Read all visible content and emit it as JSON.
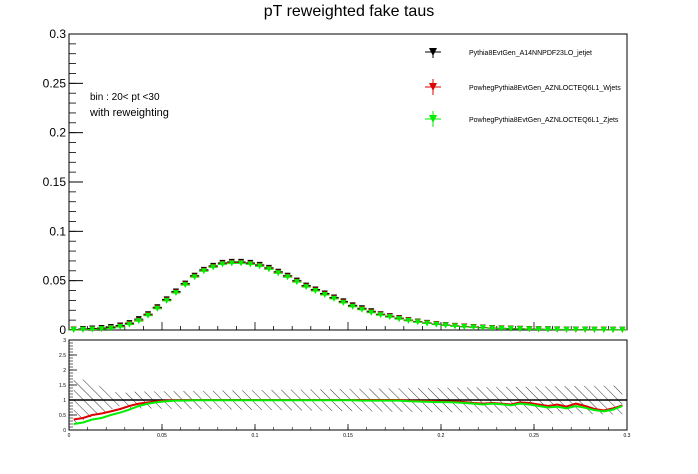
{
  "chart_data": {
    "type": "scatter",
    "title": "pT reweighted fake taus",
    "annotations": [
      "bin : 20< pt <30",
      "with reweighting"
    ],
    "main": {
      "xlim": [
        0,
        0.3
      ],
      "ylim": [
        0,
        0.3
      ],
      "yticks": [
        "0",
        "0.05",
        "0.1",
        "0.15",
        "0.2",
        "0.25",
        "0.3"
      ],
      "yticks_values": [
        0,
        0.05,
        0.1,
        0.15,
        0.2,
        0.25,
        0.3
      ],
      "x": [
        0.0025,
        0.0075,
        0.0125,
        0.0175,
        0.0225,
        0.0275,
        0.0325,
        0.0375,
        0.0425,
        0.0475,
        0.0525,
        0.0575,
        0.0625,
        0.0675,
        0.0725,
        0.0775,
        0.0825,
        0.0875,
        0.0925,
        0.0975,
        0.1025,
        0.1075,
        0.1125,
        0.1175,
        0.1225,
        0.1275,
        0.1325,
        0.1375,
        0.1425,
        0.1475,
        0.1525,
        0.1575,
        0.1625,
        0.1675,
        0.1725,
        0.1775,
        0.1825,
        0.1875,
        0.1925,
        0.1975,
        0.2025,
        0.2075,
        0.2125,
        0.2175,
        0.2225,
        0.2275,
        0.2325,
        0.2375,
        0.2425,
        0.2475,
        0.2525,
        0.2575,
        0.2625,
        0.2675,
        0.2725,
        0.2775,
        0.2825,
        0.2875,
        0.2925,
        0.2975
      ],
      "series": [
        {
          "name": "Pythia8EvtGen_A14NNPDF23LO_jetjet",
          "color": "#000000",
          "marker": "triangle-down",
          "values": [
            0.0005,
            0.001,
            0.0015,
            0.002,
            0.003,
            0.0045,
            0.007,
            0.011,
            0.016,
            0.023,
            0.031,
            0.039,
            0.047,
            0.055,
            0.061,
            0.065,
            0.068,
            0.069,
            0.069,
            0.068,
            0.066,
            0.063,
            0.059,
            0.055,
            0.05,
            0.045,
            0.041,
            0.037,
            0.033,
            0.029,
            0.025,
            0.022,
            0.019,
            0.016,
            0.014,
            0.012,
            0.01,
            0.0085,
            0.0072,
            0.006,
            0.005,
            0.0042,
            0.0035,
            0.003,
            0.0025,
            0.002,
            0.0017,
            0.0014,
            0.0012,
            0.001,
            0.0008,
            0.0007,
            0.0006,
            0.0005,
            0.0004,
            0.0004,
            0.0003,
            0.0003,
            0.0002,
            0.0002
          ]
        },
        {
          "name": "PowhegPythia8EvtGen_AZNLOCTEQ6L1_Wjets",
          "color": "#dd0000",
          "marker": "triangle-down",
          "values": [
            0.0002,
            0.0004,
            0.0008,
            0.0012,
            0.002,
            0.0035,
            0.006,
            0.0095,
            0.015,
            0.022,
            0.03,
            0.038,
            0.046,
            0.054,
            0.06,
            0.064,
            0.067,
            0.068,
            0.068,
            0.067,
            0.065,
            0.062,
            0.058,
            0.054,
            0.049,
            0.044,
            0.04,
            0.036,
            0.032,
            0.028,
            0.024,
            0.021,
            0.018,
            0.0155,
            0.0135,
            0.0115,
            0.0097,
            0.0082,
            0.007,
            0.0058,
            0.0048,
            0.004,
            0.0034,
            0.0029,
            0.0024,
            0.0019,
            0.0016,
            0.0013,
            0.0011,
            0.0009,
            0.0007,
            0.0006,
            0.0005,
            0.0004,
            0.0003,
            0.0003,
            0.0002,
            0.0002,
            0.0001,
            0.0001
          ]
        },
        {
          "name": "PowhegPythia8EvtGen_AZNLOCTEQ6L1_Zjets",
          "color": "#00ee00",
          "marker": "triangle-down",
          "values": [
            0.0001,
            0.0002,
            0.0005,
            0.0009,
            0.0016,
            0.003,
            0.0055,
            0.009,
            0.0145,
            0.0215,
            0.0295,
            0.0375,
            0.0455,
            0.0535,
            0.0595,
            0.0635,
            0.0665,
            0.0675,
            0.0675,
            0.0665,
            0.0645,
            0.0615,
            0.0575,
            0.0535,
            0.0485,
            0.0435,
            0.0395,
            0.0355,
            0.0315,
            0.0275,
            0.0235,
            0.0205,
            0.0175,
            0.015,
            0.013,
            0.011,
            0.0093,
            0.0078,
            0.0066,
            0.0055,
            0.0045,
            0.0037,
            0.0031,
            0.0026,
            0.0021,
            0.0017,
            0.0014,
            0.0011,
            0.0009,
            0.0007,
            0.0006,
            0.0005,
            0.0004,
            0.0003,
            0.0003,
            0.0002,
            0.0002,
            0.0001,
            0.0001,
            0.0001
          ]
        }
      ]
    },
    "ratio": {
      "xlim": [
        0,
        0.3
      ],
      "ylim": [
        0,
        3
      ],
      "xticks": [
        "0",
        "0.05",
        "0.1",
        "0.15",
        "0.2",
        "0.25",
        "0.3"
      ],
      "xticks_values": [
        0,
        0.05,
        0.1,
        0.15,
        0.2,
        0.25,
        0.3
      ],
      "yticks": [
        "0",
        "0.5",
        "1",
        "1.5",
        "2",
        "2.5",
        "3"
      ],
      "yticks_values": [
        0,
        0.5,
        1,
        1.5,
        2,
        2.5,
        3
      ],
      "series": [
        {
          "name": "PowhegPythia8EvtGen_AZNLOCTEQ6L1_Wjets",
          "color": "#dd0000",
          "values": [
            0.35,
            0.4,
            0.5,
            0.55,
            0.62,
            0.7,
            0.8,
            0.88,
            0.92,
            0.96,
            0.98,
            0.99,
            0.99,
            1.0,
            1.0,
            1.0,
            1.0,
            1.0,
            1.0,
            1.0,
            1.0,
            1.0,
            1.0,
            1.0,
            1.0,
            1.0,
            1.0,
            1.0,
            1.0,
            1.0,
            1.0,
            1.0,
            1.0,
            1.0,
            1.0,
            1.0,
            0.98,
            0.97,
            0.97,
            0.96,
            0.95,
            0.95,
            0.93,
            0.9,
            0.88,
            0.9,
            0.88,
            0.85,
            0.92,
            0.9,
            0.85,
            0.8,
            0.85,
            0.78,
            0.88,
            0.8,
            0.7,
            0.65,
            0.72,
            0.82
          ]
        },
        {
          "name": "PowhegPythia8EvtGen_AZNLOCTEQ6L1_Zjets",
          "color": "#00ee00",
          "values": [
            0.2,
            0.25,
            0.35,
            0.4,
            0.5,
            0.58,
            0.68,
            0.8,
            0.88,
            0.93,
            0.96,
            0.98,
            0.98,
            0.99,
            0.99,
            0.99,
            0.99,
            0.99,
            0.99,
            0.99,
            0.99,
            0.99,
            0.99,
            0.99,
            0.99,
            0.99,
            0.99,
            0.99,
            0.99,
            0.99,
            0.99,
            0.98,
            0.98,
            0.98,
            0.98,
            0.98,
            0.96,
            0.95,
            0.94,
            0.93,
            0.93,
            0.92,
            0.9,
            0.88,
            0.85,
            0.88,
            0.86,
            0.82,
            0.88,
            0.85,
            0.8,
            0.75,
            0.78,
            0.72,
            0.8,
            0.74,
            0.66,
            0.62,
            0.68,
            0.8
          ]
        }
      ]
    }
  }
}
